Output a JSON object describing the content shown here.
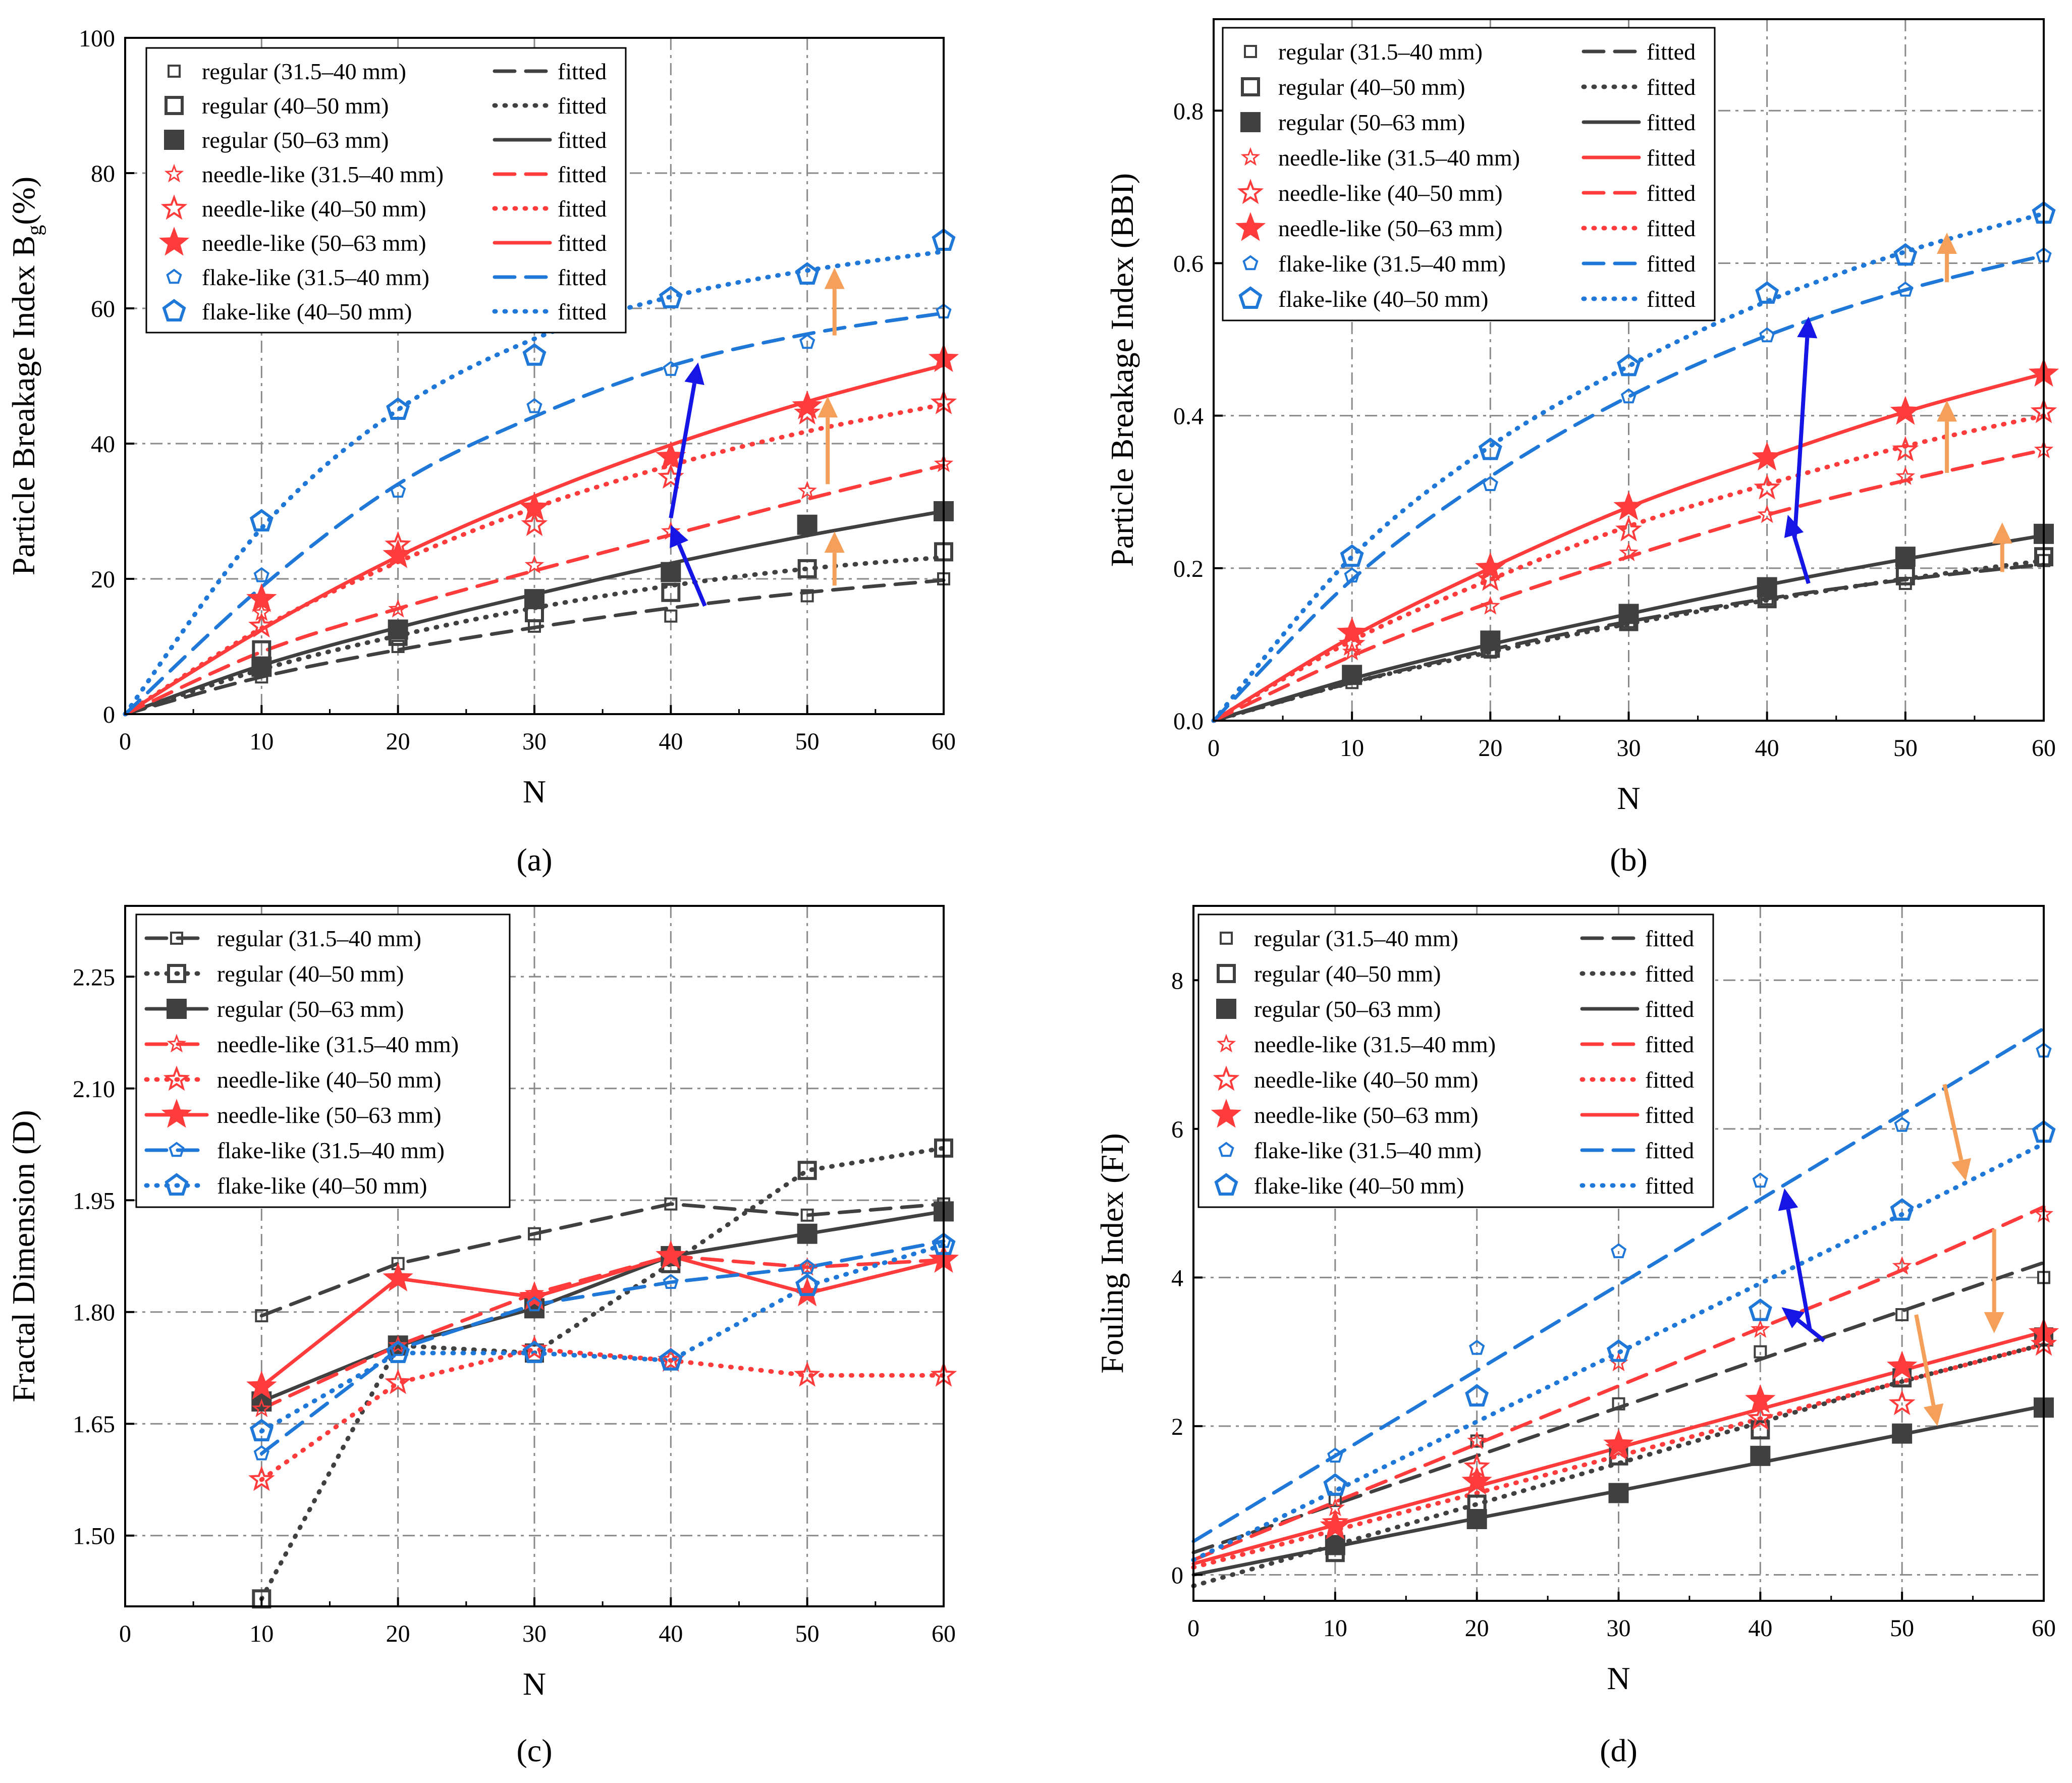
{
  "colors": {
    "regular": "#404040",
    "needle": "#ff3b3b",
    "flake": "#1f78d8",
    "orange_arrow": "#f5a05a",
    "blue_arrow": "#1515e6",
    "grid": "#8a8a8a"
  },
  "chart_data": [
    {
      "id": "a",
      "type": "scatter",
      "caption": "(a)",
      "ylabel_main": "Particle Breakage Index B",
      "ylabel_sub": "g",
      "ylabel_tail": "(%)",
      "xlabel": "N",
      "xlim": [
        0,
        60
      ],
      "ylim": [
        0,
        100
      ],
      "xticks": [
        "0",
        "10",
        "20",
        "30",
        "40",
        "50",
        "60"
      ],
      "yticks": [
        "0",
        "20",
        "40",
        "60",
        "80",
        "100"
      ],
      "grid": true,
      "legend_placement": "top-left",
      "legend_fit_label": "fitted",
      "x": [
        10,
        20,
        30,
        40,
        50,
        60
      ],
      "series": [
        {
          "name": "regular (31.5–40 mm)",
          "group": "regular",
          "marker": "square-open-small",
          "line": "dash",
          "points": [
            5.5,
            10,
            13,
            14.5,
            17.5,
            20
          ],
          "fit": [
            0,
            5.5,
            9.5,
            12.8,
            15.7,
            18,
            19.8
          ]
        },
        {
          "name": "regular (40–50 mm)",
          "group": "regular",
          "marker": "square-open",
          "line": "dot",
          "points": [
            9.5,
            11.5,
            15,
            18,
            21.5,
            24
          ],
          "fit": [
            0,
            6.6,
            11.6,
            15.7,
            19,
            21.5,
            23.2
          ]
        },
        {
          "name": "regular (50–63 mm)",
          "group": "regular",
          "marker": "square-filled",
          "line": "solid",
          "points": [
            7,
            12.5,
            17,
            21,
            28,
            30
          ],
          "fit": [
            0,
            7.2,
            12.8,
            17.7,
            22.3,
            26.4,
            30
          ]
        },
        {
          "name": "needle-like (31.5–40 mm)",
          "group": "needle",
          "marker": "star-open-small",
          "line": "dash",
          "points": [
            15,
            15.5,
            22,
            27,
            33,
            37
          ],
          "fit": [
            0,
            9.2,
            15.6,
            21.2,
            26.5,
            31.8,
            36.8
          ]
        },
        {
          "name": "needle-like (40–50 mm)",
          "group": "needle",
          "marker": "star-open",
          "line": "dot",
          "points": [
            13,
            25,
            28,
            35,
            44.5,
            46
          ],
          "fit": [
            0,
            12.7,
            22.5,
            30.5,
            36.8,
            41.8,
            45.8
          ]
        },
        {
          "name": "needle-like (50–63 mm)",
          "group": "needle",
          "marker": "star-filled",
          "line": "solid",
          "points": [
            17,
            23.5,
            30.5,
            38,
            45.5,
            52.5
          ],
          "fit": [
            0,
            12.5,
            23.3,
            32.2,
            39.8,
            46.2,
            51.6
          ]
        },
        {
          "name": "flake-like (31.5–40 mm)",
          "group": "flake",
          "marker": "pentagon-open-small",
          "line": "dash",
          "points": [
            20.5,
            33,
            45.5,
            51,
            55,
            59.5
          ],
          "fit": [
            0,
            18.8,
            34,
            44,
            51.5,
            56.2,
            59.3
          ]
        },
        {
          "name": "flake-like (40–50 mm)",
          "group": "flake",
          "marker": "pentagon-open",
          "line": "dot",
          "points": [
            28.5,
            45,
            53,
            61.5,
            65,
            70
          ],
          "fit": [
            0,
            27.5,
            45,
            55.5,
            61.7,
            65.6,
            68.4
          ]
        }
      ],
      "arrows": [
        {
          "color": "orange",
          "from": [
            52,
            19
          ],
          "to": [
            52,
            27
          ]
        },
        {
          "color": "orange",
          "from": [
            51.5,
            34
          ],
          "to": [
            51.5,
            47
          ]
        },
        {
          "color": "orange",
          "from": [
            52,
            56
          ],
          "to": [
            52,
            66
          ]
        },
        {
          "color": "blue",
          "from": [
            42.5,
            16
          ],
          "to": [
            40,
            28
          ]
        },
        {
          "color": "blue",
          "from": [
            40,
            29
          ],
          "to": [
            42,
            52
          ]
        }
      ]
    },
    {
      "id": "b",
      "type": "scatter",
      "caption": "(b)",
      "ylabel_main": "Particle Breakage Index (BBI)",
      "ylabel_sub": "",
      "ylabel_tail": "",
      "xlabel": "N",
      "xlim": [
        0,
        60
      ],
      "ylim": [
        0,
        0.92
      ],
      "xticks": [
        "0",
        "10",
        "20",
        "30",
        "40",
        "50",
        "60"
      ],
      "yticks": [
        "0.0",
        "0.2",
        "0.4",
        "0.6",
        "0.8"
      ],
      "grid": true,
      "legend_placement": "top-left",
      "legend_fit_label": "fitted",
      "x": [
        10,
        20,
        30,
        40,
        50,
        60
      ],
      "series": [
        {
          "name": "regular (31.5–40 mm)",
          "group": "regular",
          "marker": "square-open-small",
          "line": "dash",
          "points": [
            0.05,
            0.09,
            0.13,
            0.16,
            0.18,
            0.21
          ],
          "fit": [
            0,
            0.05,
            0.093,
            0.13,
            0.16,
            0.185,
            0.205
          ]
        },
        {
          "name": "regular (40–50 mm)",
          "group": "regular",
          "marker": "square-open",
          "line": "dot",
          "points": [
            0.06,
            0.095,
            0.13,
            0.16,
            0.19,
            0.215
          ],
          "fit": [
            0,
            0.05,
            0.09,
            0.127,
            0.158,
            0.186,
            0.21
          ]
        },
        {
          "name": "regular (50–63 mm)",
          "group": "regular",
          "marker": "square-filled",
          "line": "solid",
          "points": [
            0.06,
            0.105,
            0.14,
            0.175,
            0.215,
            0.245
          ],
          "fit": [
            0,
            0.055,
            0.1,
            0.14,
            0.178,
            0.212,
            0.243
          ]
        },
        {
          "name": "needle-like (31.5–40 mm)",
          "group": "needle",
          "marker": "star-open-small",
          "line": "solid",
          "points": [
            0.09,
            0.15,
            0.22,
            0.27,
            0.32,
            0.355
          ],
          "fit": [
            0,
            0.11,
            0.2,
            0.28,
            0.345,
            0.405,
            0.455
          ]
        },
        {
          "name": "needle-like (40–50 mm)",
          "group": "needle",
          "marker": "star-open",
          "line": "dash",
          "points": [
            0.1,
            0.185,
            0.25,
            0.305,
            0.355,
            0.405
          ],
          "fit": [
            0,
            0.085,
            0.155,
            0.215,
            0.27,
            0.315,
            0.355
          ]
        },
        {
          "name": "needle-like (50–63 mm)",
          "group": "needle",
          "marker": "star-filled",
          "line": "dot",
          "points": [
            0.115,
            0.2,
            0.28,
            0.345,
            0.405,
            0.455
          ],
          "fit": [
            0,
            0.105,
            0.185,
            0.255,
            0.31,
            0.36,
            0.4
          ]
        },
        {
          "name": "flake-like (31.5–40 mm)",
          "group": "flake",
          "marker": "pentagon-open-small",
          "line": "dash",
          "points": [
            0.19,
            0.31,
            0.425,
            0.505,
            0.565,
            0.61
          ],
          "fit": [
            0,
            0.185,
            0.32,
            0.425,
            0.505,
            0.565,
            0.61
          ]
        },
        {
          "name": "flake-like (40–50 mm)",
          "group": "flake",
          "marker": "pentagon-open",
          "line": "dot",
          "points": [
            0.215,
            0.355,
            0.465,
            0.56,
            0.61,
            0.665
          ],
          "fit": [
            0,
            0.215,
            0.36,
            0.465,
            0.55,
            0.615,
            0.665
          ]
        }
      ],
      "arrows": [
        {
          "color": "orange",
          "from": [
            57,
            0.195
          ],
          "to": [
            57,
            0.26
          ]
        },
        {
          "color": "orange",
          "from": [
            53,
            0.325
          ],
          "to": [
            53,
            0.42
          ]
        },
        {
          "color": "orange",
          "from": [
            53,
            0.575
          ],
          "to": [
            53,
            0.64
          ]
        },
        {
          "color": "blue",
          "from": [
            43,
            0.18
          ],
          "to": [
            41.5,
            0.27
          ]
        },
        {
          "color": "blue",
          "from": [
            42,
            0.24
          ],
          "to": [
            43,
            0.53
          ]
        }
      ]
    },
    {
      "id": "c",
      "type": "line",
      "caption": "(c)",
      "ylabel_main": "Fractal Dimension (D)",
      "ylabel_sub": "",
      "ylabel_tail": "",
      "xlabel": "N",
      "xlim": [
        0,
        60
      ],
      "ylim": [
        1.405,
        2.345
      ],
      "xticks": [
        "0",
        "10",
        "20",
        "30",
        "40",
        "50",
        "60"
      ],
      "yticks": [
        "1.50",
        "1.65",
        "1.80",
        "1.95",
        "2.10",
        "2.25"
      ],
      "yticks_values": [
        1.5,
        1.65,
        1.8,
        1.95,
        2.1,
        2.25
      ],
      "grid": true,
      "legend_placement": "top-left",
      "x": [
        10,
        20,
        30,
        40,
        50,
        60
      ],
      "series": [
        {
          "name": "regular (31.5–40 mm)",
          "group": "regular",
          "marker": "square-open-small",
          "line": "dash",
          "points": [
            1.795,
            1.865,
            1.905,
            1.945,
            1.93,
            1.945
          ]
        },
        {
          "name": "regular (40–50 mm)",
          "group": "regular",
          "marker": "square-open",
          "line": "dot",
          "points": [
            1.415,
            1.755,
            1.745,
            1.865,
            1.99,
            2.02
          ]
        },
        {
          "name": "regular (50–63 mm)",
          "group": "regular",
          "marker": "square-filled",
          "line": "solid",
          "points": [
            1.68,
            1.755,
            1.805,
            1.875,
            1.905,
            1.935
          ]
        },
        {
          "name": "needle-like (31.5–40 mm)",
          "group": "needle",
          "marker": "star-open-small",
          "line": "dash",
          "points": [
            1.67,
            1.755,
            1.825,
            1.875,
            1.86,
            1.87
          ]
        },
        {
          "name": "needle-like (40–50 mm)",
          "group": "needle",
          "marker": "star-open",
          "line": "dot",
          "points": [
            1.575,
            1.705,
            1.75,
            1.735,
            1.715,
            1.715
          ]
        },
        {
          "name": "needle-like (50–63 mm)",
          "group": "needle",
          "marker": "star-filled",
          "line": "solid",
          "points": [
            1.7,
            1.845,
            1.82,
            1.875,
            1.825,
            1.87
          ]
        },
        {
          "name": "flake-like (31.5–40 mm)",
          "group": "flake",
          "marker": "pentagon-open-small",
          "line": "dash",
          "points": [
            1.61,
            1.75,
            1.81,
            1.84,
            1.86,
            1.895
          ]
        },
        {
          "name": "flake-like (40–50 mm)",
          "group": "flake",
          "marker": "pentagon-open",
          "line": "dot",
          "points": [
            1.64,
            1.745,
            1.745,
            1.735,
            1.835,
            1.89
          ]
        }
      ],
      "arrows": []
    },
    {
      "id": "d",
      "type": "scatter",
      "caption": "(d)",
      "ylabel_main": "Fouling Index (FI)",
      "ylabel_sub": "",
      "ylabel_tail": "",
      "xlabel": "N",
      "xlim": [
        0,
        60
      ],
      "ylim": [
        -0.35,
        9
      ],
      "xticks": [
        "0",
        "10",
        "20",
        "30",
        "40",
        "50",
        "60"
      ],
      "yticks": [
        "0",
        "2",
        "4",
        "6",
        "8"
      ],
      "yticks_values": [
        0,
        2,
        4,
        6,
        8
      ],
      "grid": true,
      "legend_placement": "top-left",
      "legend_fit_label": "fitted",
      "x": [
        10,
        20,
        30,
        40,
        50,
        60
      ],
      "series": [
        {
          "name": "regular (31.5–40 mm)",
          "group": "regular",
          "marker": "square-open-small",
          "line": "dash",
          "points": [
            1.0,
            1.8,
            2.3,
            3.0,
            3.5,
            4.0
          ],
          "fit": [
            0.3,
            0.95,
            1.6,
            2.25,
            2.9,
            3.55,
            4.2
          ]
        },
        {
          "name": "regular (40–50 mm)",
          "group": "regular",
          "marker": "square-open",
          "line": "dot",
          "points": [
            0.3,
            0.95,
            1.6,
            1.95,
            2.65,
            3.2
          ],
          "fit": [
            -0.15,
            0.4,
            0.95,
            1.5,
            2.05,
            2.6,
            3.1
          ]
        },
        {
          "name": "regular (50–63 mm)",
          "group": "regular",
          "marker": "square-filled",
          "line": "solid",
          "points": [
            0.4,
            0.75,
            1.1,
            1.6,
            1.9,
            2.25
          ],
          "fit": [
            0.0,
            0.38,
            0.76,
            1.13,
            1.51,
            1.89,
            2.27
          ]
        },
        {
          "name": "needle-like (31.5–40 mm)",
          "group": "needle",
          "marker": "star-open-small",
          "line": "dash",
          "points": [
            0.9,
            1.8,
            2.85,
            3.3,
            4.15,
            4.85
          ],
          "fit": [
            0.2,
            0.98,
            1.76,
            2.54,
            3.32,
            4.1,
            4.95
          ]
        },
        {
          "name": "needle-like (40–50 mm)",
          "group": "needle",
          "marker": "star-open",
          "line": "dot",
          "points": [
            0.7,
            1.45,
            1.7,
            2.1,
            2.3,
            3.1
          ],
          "fit": [
            0.1,
            0.6,
            1.1,
            1.6,
            2.1,
            2.6,
            3.1
          ]
        },
        {
          "name": "needle-like (50–63 mm)",
          "group": "needle",
          "marker": "star-filled",
          "line": "solid",
          "points": [
            0.65,
            1.25,
            1.75,
            2.35,
            2.8,
            3.25
          ],
          "fit": [
            0.15,
            0.67,
            1.19,
            1.71,
            2.23,
            2.75,
            3.27
          ]
        },
        {
          "name": "flake-like (31.5–40 mm)",
          "group": "flake",
          "marker": "pentagon-open-small",
          "line": "dash",
          "points": [
            1.6,
            3.05,
            4.35,
            5.3,
            6.05,
            7.05
          ],
          "fit": [
            0.45,
            1.6,
            2.75,
            3.9,
            5.05,
            6.2,
            7.35
          ]
        },
        {
          "name": "flake-like (40–50 mm)",
          "group": "flake",
          "marker": "pentagon-open",
          "line": "dot",
          "points": [
            1.2,
            2.4,
            3.0,
            3.55,
            4.9,
            5.95
          ],
          "fit": [
            0.2,
            1.13,
            2.06,
            2.99,
            3.92,
            4.85,
            5.8
          ]
        }
      ],
      "arrows": [
        {
          "color": "orange",
          "from": [
            53,
            6.6
          ],
          "to": [
            54.5,
            5.3
          ]
        },
        {
          "color": "orange",
          "from": [
            56.5,
            4.65
          ],
          "to": [
            56.5,
            3.25
          ]
        },
        {
          "color": "orange",
          "from": [
            51,
            3.5
          ],
          "to": [
            52.5,
            2.0
          ]
        },
        {
          "color": "blue",
          "from": [
            43.5,
            3.3
          ],
          "to": [
            41.7,
            5.2
          ]
        },
        {
          "color": "blue",
          "from": [
            44.5,
            3.15
          ],
          "to": [
            41.5,
            3.6
          ]
        }
      ]
    }
  ]
}
